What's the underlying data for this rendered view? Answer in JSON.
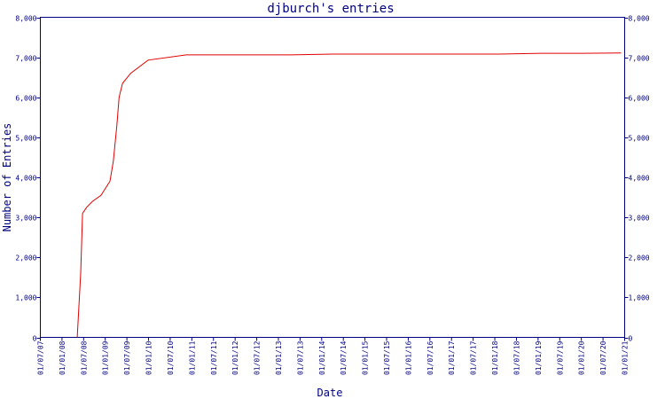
{
  "chart_data": {
    "type": "line",
    "title": "djburch's entries",
    "xlabel": "Date",
    "ylabel": "Number of Entries",
    "ylim": [
      0,
      8000
    ],
    "xlim": [
      "2007-01-01",
      "2021-01-01"
    ],
    "grid": false,
    "colors": {
      "axis": "#000080",
      "line": "#e00000",
      "background": "#ffffff"
    },
    "x_tick_labels": [
      "01/07/07",
      "01/01/08",
      "01/07/08",
      "01/01/09",
      "01/07/09",
      "01/01/10",
      "01/07/10",
      "01/01/11",
      "01/07/11",
      "01/01/12",
      "01/07/12",
      "01/01/13",
      "01/07/13",
      "01/01/14",
      "01/07/14",
      "01/01/15",
      "01/07/15",
      "01/01/16",
      "01/07/16",
      "01/01/17",
      "01/07/17",
      "01/01/18",
      "01/07/18",
      "01/01/19",
      "01/07/19",
      "01/01/20",
      "01/07/20",
      "01/01/21"
    ],
    "y_tick_labels": [
      "0",
      "1,000",
      "2,000",
      "3,000",
      "4,000",
      "5,000",
      "6,000",
      "7,000",
      "8,000"
    ],
    "y_tick_values": [
      0,
      1000,
      2000,
      3000,
      4000,
      5000,
      6000,
      7000,
      8000
    ],
    "series": [
      {
        "x": [
          "2007-11-20",
          "2007-12-20",
          "2008-01-05",
          "2008-02-10",
          "2008-04-01",
          "2008-06-15",
          "2008-09-01",
          "2008-10-01",
          "2008-11-01",
          "2008-11-20",
          "2008-12-20",
          "2009-03-01",
          "2009-08-01",
          "2010-07-01",
          "2011-01-01",
          "2012-01-01",
          "2013-01-01",
          "2014-01-01",
          "2015-01-01",
          "2016-01-01",
          "2017-01-01",
          "2018-01-01",
          "2019-01-01",
          "2020-01-01",
          "2020-12-01"
        ],
        "y": [
          0,
          1600,
          3100,
          3250,
          3400,
          3550,
          3900,
          4400,
          5300,
          6000,
          6350,
          6600,
          6930,
          7060,
          7060,
          7060,
          7060,
          7080,
          7080,
          7080,
          7080,
          7080,
          7100,
          7100,
          7110
        ]
      }
    ]
  }
}
